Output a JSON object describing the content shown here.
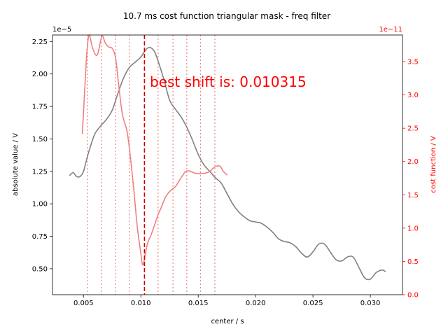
{
  "chart_data": {
    "type": "line",
    "title": "10.7 ms cost function triangular mask - freq filter",
    "xlabel": "center / s",
    "ylabel_left": "absolute value / V",
    "ylabel_right": "cost function / V",
    "left_exponent": "1e−5",
    "right_exponent": "1e−11",
    "annotation": "best shift is: 0.010315",
    "best_shift": 0.010315,
    "xlim": [
      0.0023,
      0.0328
    ],
    "ylim_left": [
      0.3,
      2.3
    ],
    "ylim_right": [
      0.0,
      3.9
    ],
    "x_ticks": [
      0.005,
      0.01,
      0.015,
      0.02,
      0.025,
      0.03
    ],
    "x_tick_labels": [
      "0.005",
      "0.010",
      "0.015",
      "0.020",
      "0.025",
      "0.030"
    ],
    "y_left_ticks": [
      0.5,
      0.75,
      1.0,
      1.25,
      1.5,
      1.75,
      2.0,
      2.25
    ],
    "y_left_tick_labels": [
      "0.50",
      "0.75",
      "1.00",
      "1.25",
      "1.50",
      "1.75",
      "2.00",
      "2.25"
    ],
    "y_right_ticks": [
      0.0,
      0.5,
      1.0,
      1.5,
      2.0,
      2.5,
      3.0,
      3.5
    ],
    "y_right_tick_labels": [
      "0.0",
      "0.5",
      "1.0",
      "1.5",
      "2.0",
      "2.5",
      "3.0",
      "3.5"
    ],
    "mask_lines_x": [
      0.00535,
      0.00655,
      0.0078,
      0.009,
      0.0115,
      0.0128,
      0.014,
      0.0152,
      0.01645
    ],
    "series": [
      {
        "axis": "left",
        "color": "#808080",
        "x": [
          0.0038,
          0.0041,
          0.0044,
          0.0047,
          0.005,
          0.0053,
          0.0056,
          0.006,
          0.0065,
          0.007,
          0.0075,
          0.008,
          0.0085,
          0.009,
          0.0095,
          0.01,
          0.0103,
          0.0106,
          0.0109,
          0.0112,
          0.0115,
          0.012,
          0.0125,
          0.013,
          0.0135,
          0.014,
          0.0145,
          0.015,
          0.0155,
          0.016,
          0.0165,
          0.017,
          0.0175,
          0.018,
          0.0185,
          0.019,
          0.0195,
          0.02,
          0.0205,
          0.021,
          0.0215,
          0.022,
          0.0225,
          0.023,
          0.0235,
          0.024,
          0.0245,
          0.025,
          0.0255,
          0.026,
          0.0265,
          0.027,
          0.0275,
          0.028,
          0.0285,
          0.029,
          0.0295,
          0.03,
          0.0305,
          0.031,
          0.0313
        ],
        "values": [
          1.22,
          1.24,
          1.21,
          1.21,
          1.25,
          1.35,
          1.44,
          1.54,
          1.6,
          1.65,
          1.72,
          1.85,
          1.97,
          2.05,
          2.09,
          2.13,
          2.17,
          2.2,
          2.2,
          2.17,
          2.1,
          1.96,
          1.8,
          1.73,
          1.67,
          1.59,
          1.49,
          1.38,
          1.3,
          1.25,
          1.2,
          1.16,
          1.08,
          1.0,
          0.94,
          0.9,
          0.87,
          0.86,
          0.85,
          0.82,
          0.78,
          0.73,
          0.71,
          0.7,
          0.67,
          0.62,
          0.59,
          0.63,
          0.69,
          0.69,
          0.63,
          0.57,
          0.56,
          0.59,
          0.59,
          0.51,
          0.43,
          0.42,
          0.47,
          0.49,
          0.48
        ]
      },
      {
        "axis": "right",
        "color": "#f08080",
        "x": [
          0.0049,
          0.0051,
          0.0053,
          0.0055,
          0.0058,
          0.0062,
          0.0066,
          0.0069,
          0.0072,
          0.0075,
          0.0078,
          0.0081,
          0.0084,
          0.0088,
          0.0091,
          0.0094,
          0.0097,
          0.01,
          0.0101,
          0.0102,
          0.0103,
          0.0104,
          0.0106,
          0.0109,
          0.0112,
          0.0115,
          0.0118,
          0.0121,
          0.0124,
          0.0127,
          0.013,
          0.0133,
          0.0136,
          0.0139,
          0.0142,
          0.0145,
          0.0148,
          0.0151,
          0.0154,
          0.0157,
          0.016,
          0.0163,
          0.0166,
          0.0169,
          0.0172,
          0.0175
        ],
        "values": [
          2.42,
          3.05,
          3.65,
          3.9,
          3.7,
          3.6,
          3.88,
          3.78,
          3.72,
          3.7,
          3.55,
          3.1,
          2.7,
          2.45,
          2.05,
          1.55,
          1.0,
          0.62,
          0.48,
          0.45,
          0.52,
          0.62,
          0.78,
          0.9,
          1.05,
          1.2,
          1.32,
          1.45,
          1.53,
          1.58,
          1.62,
          1.7,
          1.78,
          1.85,
          1.86,
          1.84,
          1.82,
          1.82,
          1.82,
          1.83,
          1.85,
          1.9,
          1.93,
          1.93,
          1.85,
          1.8
        ]
      }
    ],
    "best_line_color": "#cc0000",
    "mask_line_color": "#f08080",
    "right_axis_color": "#ff0000",
    "grid": false
  }
}
